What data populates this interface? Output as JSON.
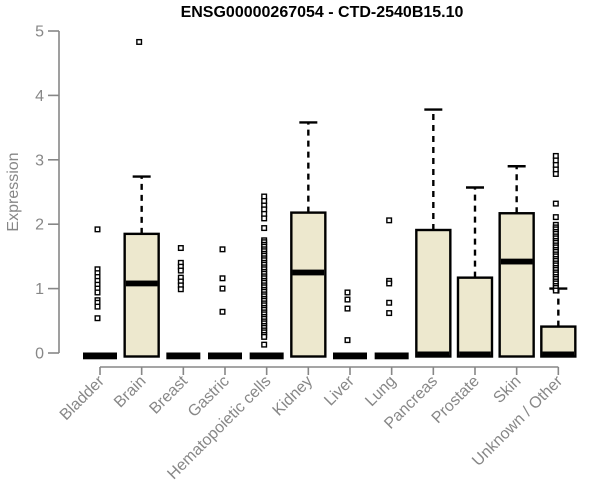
{
  "chart_data": {
    "type": "boxplot",
    "title": "ENSG00000267054 - CTD-2540B15.10",
    "ylabel": "Expression",
    "xlabel": "",
    "ylim": [
      0,
      5
    ],
    "yticks": [
      0,
      1,
      2,
      3,
      4,
      5
    ],
    "grid": false,
    "legend": null,
    "colors": {
      "box_fill": "#EDE8CE",
      "box_stroke": "#000000",
      "axis": "#878787",
      "background": "#FFFFFF"
    },
    "categories": [
      {
        "label": "Bladder",
        "q1": 0,
        "median": 0,
        "q3": 0,
        "whisker_low": 0,
        "whisker_high": 0,
        "outliers": [
          1.92,
          1.3,
          1.24,
          1.18,
          1.12,
          1.06,
          1.0,
          0.94,
          0.82,
          0.78,
          0.72,
          0.54
        ]
      },
      {
        "label": "Brain",
        "q1": 0,
        "median": 1.08,
        "q3": 1.85,
        "whisker_low": 0,
        "whisker_high": 2.74,
        "outliers": [
          4.83
        ]
      },
      {
        "label": "Breast",
        "q1": 0,
        "median": 0,
        "q3": 0,
        "whisker_low": 0,
        "whisker_high": 0,
        "outliers": [
          1.63,
          1.4,
          1.34,
          1.28,
          1.17,
          1.11,
          1.05,
          0.99
        ]
      },
      {
        "label": "Gastric",
        "q1": 0,
        "median": 0,
        "q3": 0,
        "whisker_low": 0,
        "whisker_high": 0,
        "outliers": [
          1.61,
          1.16,
          1.0,
          0.64
        ]
      },
      {
        "label": "Hematopoietic cells",
        "q1": 0,
        "median": 0,
        "q3": 0,
        "whisker_low": 0,
        "whisker_high": 0,
        "outliers": [
          2.43,
          2.36,
          2.29,
          2.23,
          2.16,
          2.09,
          1.94,
          1.75,
          1.72,
          1.68,
          1.65,
          1.61,
          1.58,
          1.54,
          1.51,
          1.47,
          1.44,
          1.4,
          1.37,
          1.33,
          1.3,
          1.26,
          1.23,
          1.19,
          1.16,
          1.12,
          1.09,
          1.05,
          1.02,
          0.98,
          0.95,
          0.91,
          0.88,
          0.84,
          0.81,
          0.77,
          0.74,
          0.7,
          0.67,
          0.63,
          0.6,
          0.56,
          0.53,
          0.49,
          0.46,
          0.42,
          0.39,
          0.35,
          0.32,
          0.28,
          0.25,
          0.13
        ]
      },
      {
        "label": "Kidney",
        "q1": 0,
        "median": 1.25,
        "q3": 2.18,
        "whisker_low": 0,
        "whisker_high": 3.58,
        "outliers": []
      },
      {
        "label": "Liver",
        "q1": 0,
        "median": 0,
        "q3": 0,
        "whisker_low": 0,
        "whisker_high": 0,
        "outliers": [
          0.94,
          0.83,
          0.69,
          0.2
        ]
      },
      {
        "label": "Lung",
        "q1": 0,
        "median": 0,
        "q3": 0,
        "whisker_low": 0,
        "whisker_high": 0,
        "outliers": [
          2.06,
          1.12,
          1.08,
          0.78,
          0.62
        ]
      },
      {
        "label": "Pancreas",
        "q1": 0,
        "median": 0,
        "q3": 1.91,
        "whisker_low": 0,
        "whisker_high": 3.78,
        "outliers": []
      },
      {
        "label": "Prostate",
        "q1": 0,
        "median": 0,
        "q3": 1.17,
        "whisker_low": 0,
        "whisker_high": 2.57,
        "outliers": []
      },
      {
        "label": "Skin",
        "q1": 0,
        "median": 1.42,
        "q3": 2.17,
        "whisker_low": 0,
        "whisker_high": 2.9,
        "outliers": []
      },
      {
        "label": "Unknown / Other",
        "q1": 0,
        "median": 0,
        "q3": 0.41,
        "whisker_low": 0,
        "whisker_high": 1.0,
        "outliers": [
          3.06,
          2.99,
          2.92,
          2.85,
          2.78,
          2.32,
          2.11,
          1.99,
          1.95,
          1.92,
          1.88,
          1.85,
          1.81,
          1.78,
          1.74,
          1.71,
          1.67,
          1.64,
          1.6,
          1.57,
          1.53,
          1.5,
          1.46,
          1.43,
          1.39,
          1.36,
          1.32,
          1.29,
          1.25,
          1.22,
          1.18,
          1.15,
          1.11,
          1.08,
          1.04,
          1.01,
          0.97
        ]
      }
    ]
  }
}
